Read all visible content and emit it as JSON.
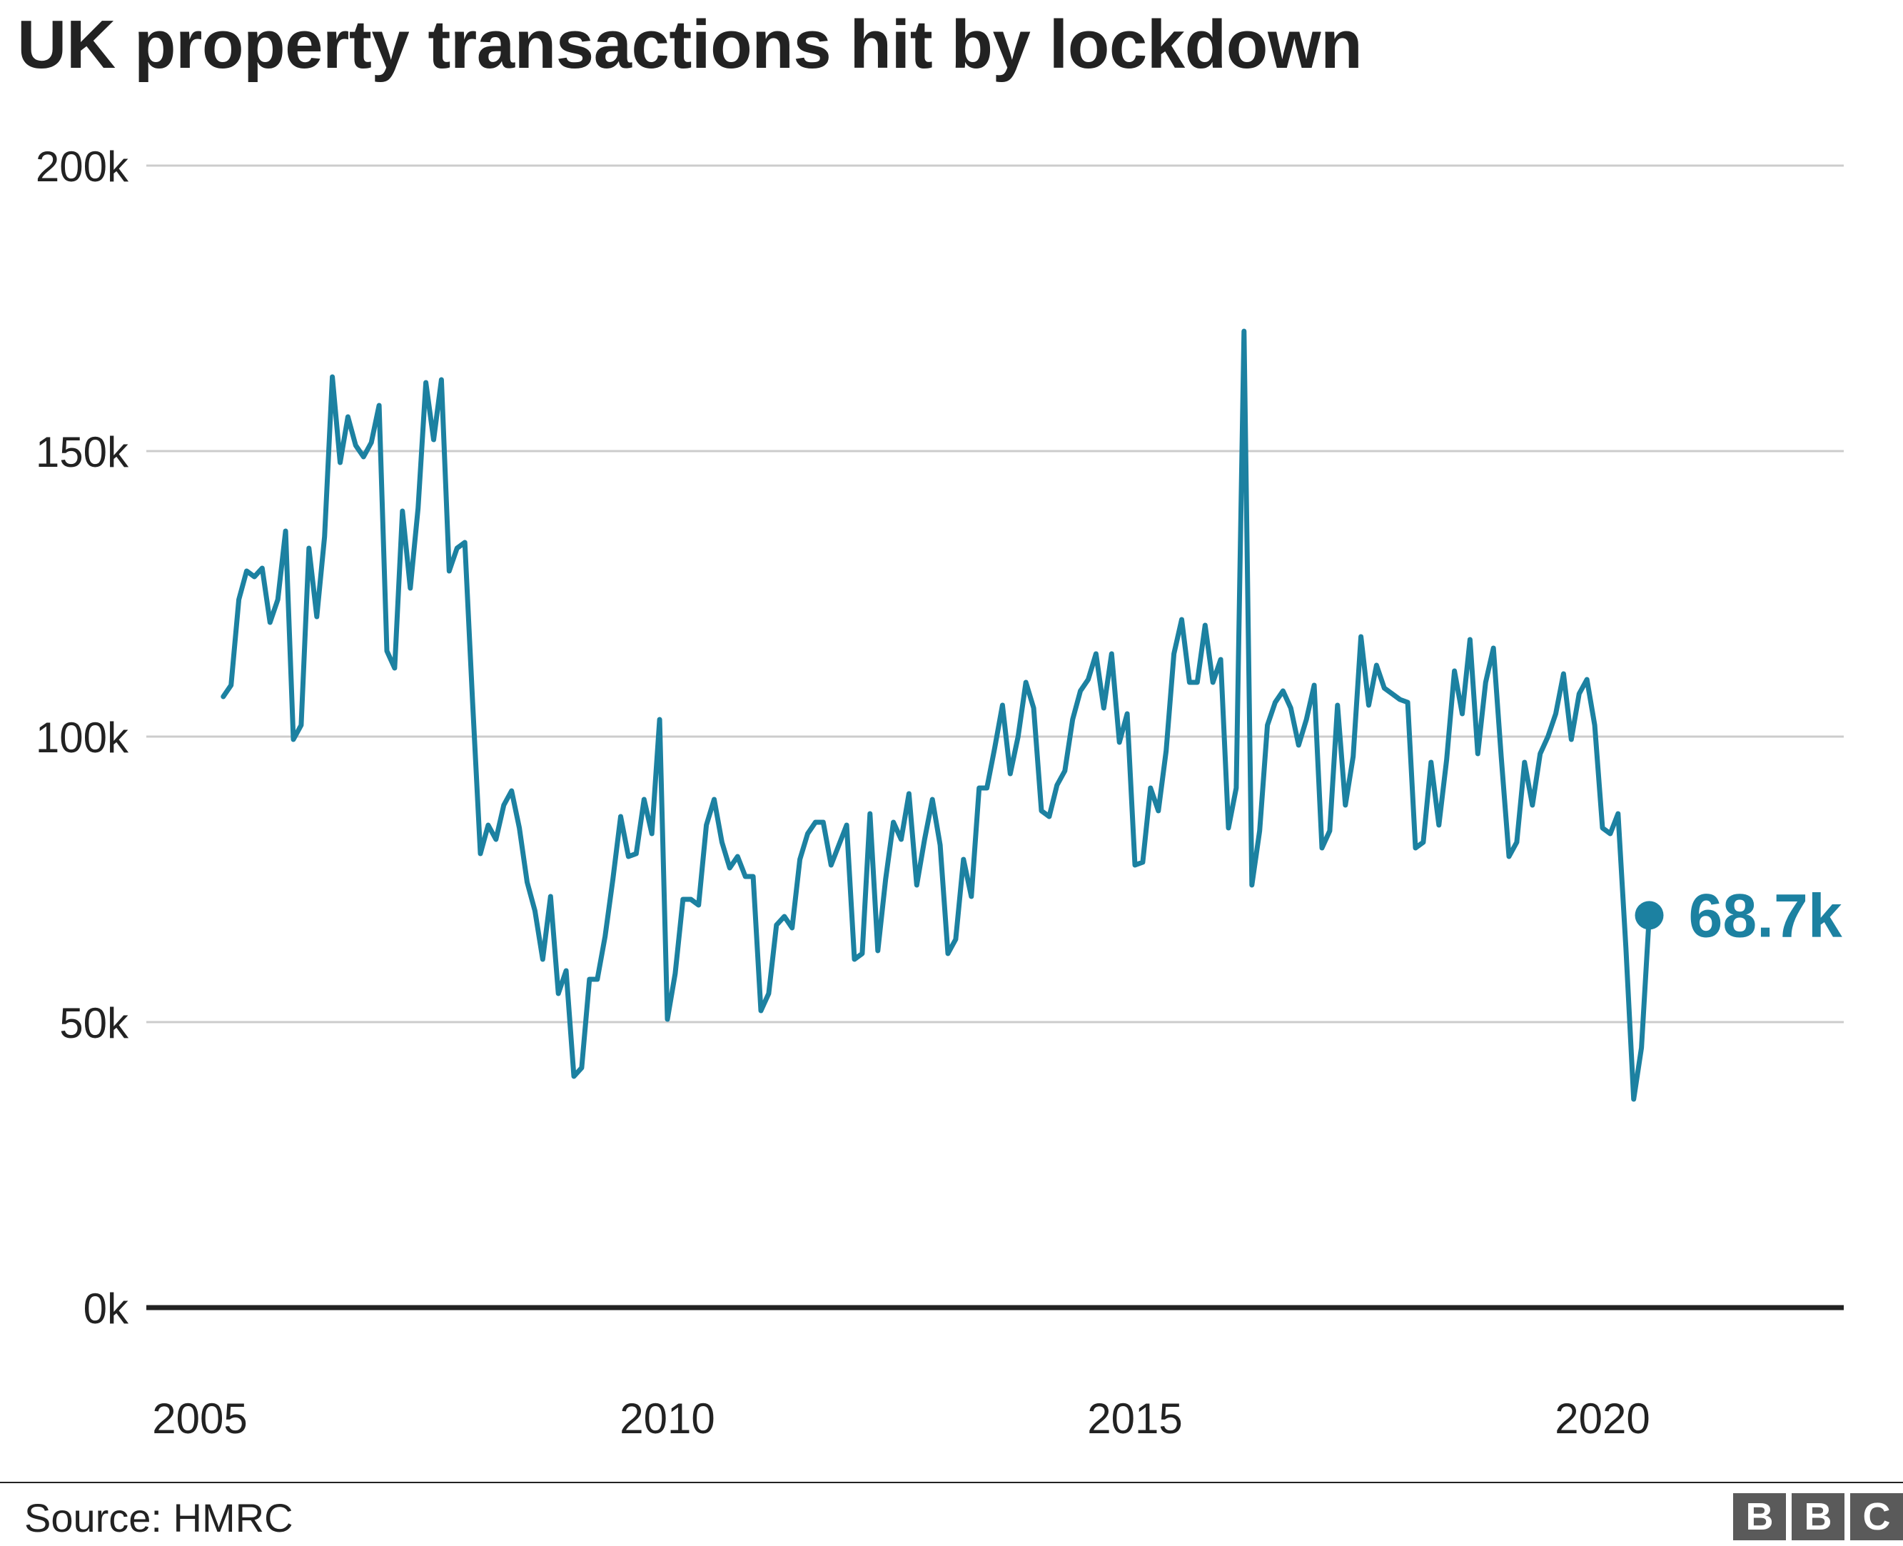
{
  "title": "UK property transactions hit by lockdown",
  "source": "Source: HMRC",
  "logo": [
    "B",
    "B",
    "C"
  ],
  "colors": {
    "line": "#1c81a1",
    "grid": "#cccccc",
    "baseline": "#222222",
    "text": "#222222"
  },
  "chart_data": {
    "type": "line",
    "title": "UK property transactions hit by lockdown",
    "xlabel": "",
    "ylabel": "",
    "ylim": [
      0,
      200000
    ],
    "xlim": [
      2005,
      2022.5
    ],
    "grid": true,
    "legend": "none",
    "yticks": [
      0,
      50000,
      100000,
      150000,
      200000
    ],
    "ytick_labels": [
      "0k",
      "50k",
      "100k",
      "150k",
      "200k"
    ],
    "xticks": [
      2005,
      2010,
      2015,
      2020
    ],
    "xtick_labels": [
      "2005",
      "2010",
      "2015",
      "2020"
    ],
    "end_label": "68.7k",
    "series": [
      {
        "start": "2005-04",
        "frequency": "monthly",
        "values": [
          107000,
          109000,
          124000,
          129000,
          128000,
          129500,
          120000,
          124000,
          136000,
          99500,
          102000,
          133000,
          121000,
          135000,
          163000,
          148000,
          156000,
          151000,
          149000,
          151500,
          158000,
          115000,
          112000,
          139500,
          126000,
          140000,
          162000,
          152000,
          162500,
          129000,
          133000,
          134000,
          106000,
          79500,
          84500,
          82000,
          88000,
          90500,
          84000,
          74500,
          69500,
          61000,
          72000,
          55000,
          59000,
          40500,
          42000,
          57500,
          57500,
          65000,
          75000,
          86000,
          79000,
          79500,
          89000,
          83000,
          103000,
          50500,
          58500,
          71500,
          71500,
          70500,
          84500,
          89000,
          81500,
          77000,
          79000,
          75500,
          75500,
          52000,
          55000,
          67000,
          68500,
          66500,
          78500,
          83000,
          85000,
          85000,
          77500,
          81000,
          84500,
          61000,
          62000,
          86500,
          62500,
          75000,
          85000,
          82000,
          90000,
          74000,
          82000,
          89000,
          81000,
          62000,
          64500,
          78500,
          72000,
          91000,
          91000,
          98000,
          105500,
          93500,
          100000,
          109500,
          105000,
          87000,
          86000,
          91500,
          94000,
          103000,
          108000,
          110000,
          114500,
          105000,
          114500,
          99000,
          104000,
          77500,
          78000,
          91000,
          87000,
          97500,
          114500,
          120500,
          109500,
          109500,
          119500,
          109500,
          113500,
          84000,
          91000,
          171000,
          74000,
          83500,
          102000,
          106000,
          108000,
          105000,
          98500,
          103000,
          109000,
          80500,
          83500,
          105500,
          88000,
          96500,
          117500,
          105500,
          112500,
          108500,
          107500,
          106500,
          106000,
          80500,
          81500,
          95500,
          84500,
          96000,
          111500,
          104000,
          117000,
          97000,
          109500,
          115500,
          96500,
          79000,
          81500,
          95500,
          88000,
          97000,
          100000,
          104000,
          111000,
          99500,
          107500,
          110000,
          102000,
          84000,
          83000,
          86500,
          63000,
          36500,
          45500,
          68700
        ]
      }
    ]
  }
}
